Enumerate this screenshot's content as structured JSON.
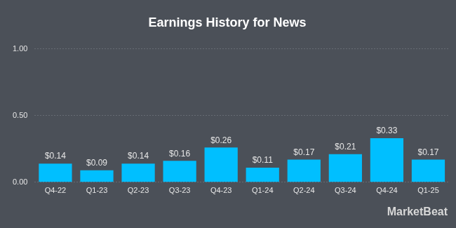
{
  "chart_data": {
    "type": "bar",
    "title": "Earnings History for News",
    "categories": [
      "Q4-22",
      "Q1-23",
      "Q2-23",
      "Q3-23",
      "Q4-23",
      "Q1-24",
      "Q2-24",
      "Q3-24",
      "Q4-24",
      "Q1-25"
    ],
    "values": [
      0.14,
      0.09,
      0.14,
      0.16,
      0.26,
      0.11,
      0.17,
      0.21,
      0.33,
      0.17
    ],
    "value_labels": [
      "$0.14",
      "$0.09",
      "$0.14",
      "$0.16",
      "$0.26",
      "$0.11",
      "$0.17",
      "$0.21",
      "$0.33",
      "$0.17"
    ],
    "data_labels": true,
    "color": "#00bfff",
    "ylim": [
      0,
      1
    ],
    "yticks": [
      {
        "value": 0,
        "label": "0.00"
      },
      {
        "value": 0.5,
        "label": "0.50"
      },
      {
        "value": 1,
        "label": "1.00"
      }
    ],
    "grid": true,
    "annotations": [
      "MarketBeat"
    ]
  }
}
